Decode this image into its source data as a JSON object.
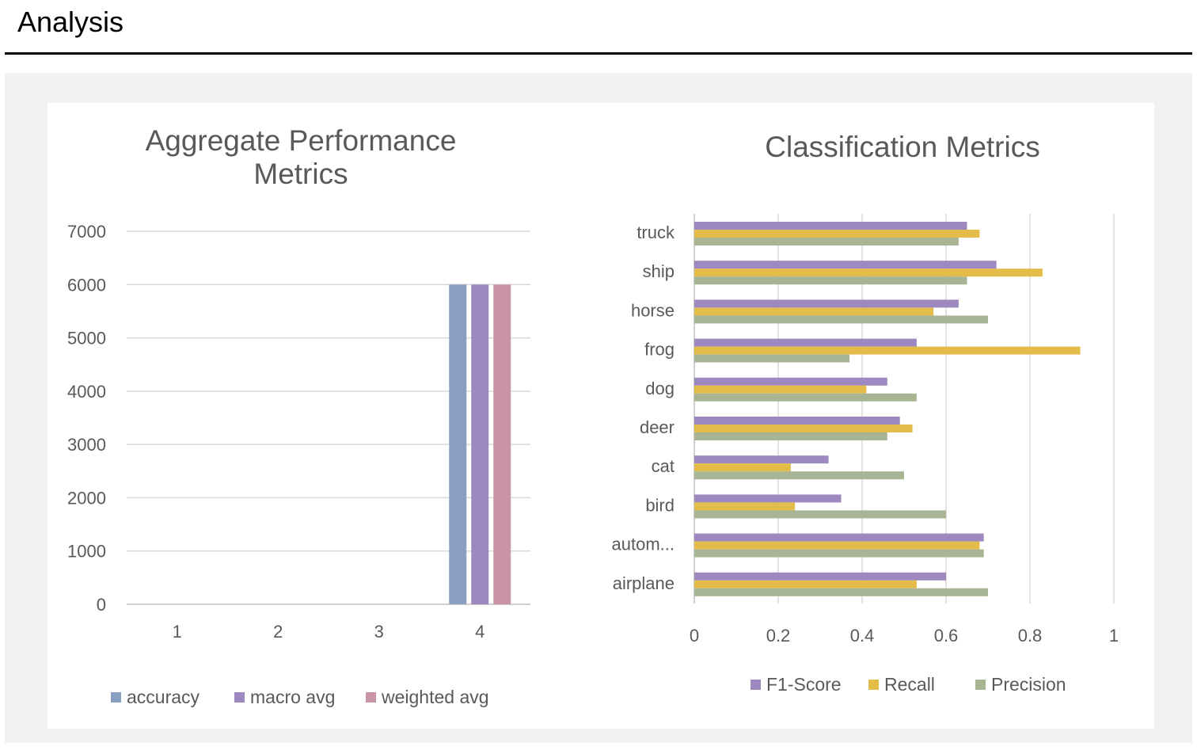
{
  "page": {
    "heading": "Analysis"
  },
  "chart_data": [
    {
      "type": "bar",
      "title": "Aggregate Performance Metrics",
      "title_lines": [
        "Aggregate Performance",
        "Metrics"
      ],
      "categories": [
        "1",
        "2",
        "3",
        "4"
      ],
      "series": [
        {
          "name": "accuracy",
          "color": "#8aa0c3",
          "values": [
            0,
            0,
            0,
            6000
          ]
        },
        {
          "name": "macro avg",
          "color": "#9d88c0",
          "values": [
            0,
            0,
            0,
            6000
          ]
        },
        {
          "name": "weighted avg",
          "color": "#c995a4",
          "values": [
            0,
            0,
            0,
            6000
          ]
        }
      ],
      "ylim": [
        0,
        7000
      ],
      "yticks": [
        "0",
        "1000",
        "2000",
        "3000",
        "4000",
        "5000",
        "6000",
        "7000"
      ],
      "grid": true,
      "legend": "bottom"
    },
    {
      "type": "bar",
      "orientation": "horizontal",
      "title": "Classification Metrics",
      "categories": [
        "airplane",
        "autom...",
        "bird",
        "cat",
        "deer",
        "dog",
        "frog",
        "horse",
        "ship",
        "truck"
      ],
      "series": [
        {
          "name": "F1-Score",
          "color": "#9d88c0",
          "values": [
            0.6,
            0.69,
            0.35,
            0.32,
            0.49,
            0.46,
            0.53,
            0.63,
            0.72,
            0.65
          ]
        },
        {
          "name": "Recall",
          "color": "#e4bc4a",
          "values": [
            0.53,
            0.68,
            0.24,
            0.23,
            0.52,
            0.41,
            0.92,
            0.57,
            0.83,
            0.68
          ]
        },
        {
          "name": "Precision",
          "color": "#a8b594",
          "values": [
            0.7,
            0.69,
            0.6,
            0.5,
            0.46,
            0.53,
            0.37,
            0.7,
            0.65,
            0.63
          ]
        }
      ],
      "xlim": [
        0,
        1
      ],
      "xticks": [
        "0",
        "0.2",
        "0.4",
        "0.6",
        "0.8",
        "1"
      ],
      "grid": true,
      "legend": "bottom"
    }
  ]
}
